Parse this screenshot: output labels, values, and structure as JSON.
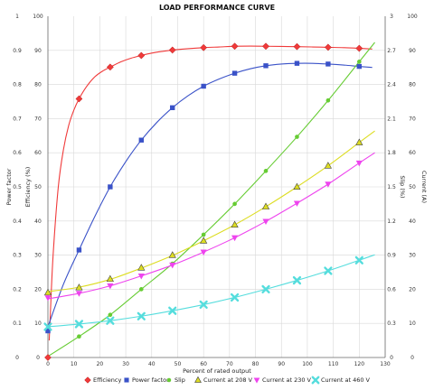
{
  "chart_data": {
    "type": "line",
    "title": "LOAD PERFORMANCE CURVE",
    "xlabel": "Percent of rated output",
    "ylabel_left_outer": "Power factor",
    "ylabel_left_inner": "Efficiency (%)",
    "ylabel_right_inner": "Slip (%)",
    "ylabel_right_outer": "Current (A)",
    "xlim": [
      0,
      130
    ],
    "x_ticks": [
      "0",
      "10",
      "20",
      "30",
      "40",
      "50",
      "60",
      "70",
      "80",
      "90",
      "100",
      "110",
      "120",
      "130"
    ],
    "pf_ticks": [
      "0",
      "0.1",
      "0.2",
      "0.3",
      "0.4",
      "0.5",
      "0.6",
      "0.7",
      "0.8",
      "0.9",
      "1"
    ],
    "eff_ticks": [
      "0",
      "10",
      "20",
      "30",
      "40",
      "50",
      "60",
      "70",
      "80",
      "90",
      "100"
    ],
    "slip_ticks": [
      "0",
      "0.3",
      "0.6",
      "0.9",
      "1.2",
      "1.5",
      "1.8",
      "2.1",
      "2.4",
      "2.7",
      "3"
    ],
    "current_ticks": [
      "0",
      "10",
      "20",
      "30",
      "40",
      "50",
      "60",
      "70",
      "80",
      "90",
      "100"
    ],
    "grid": true,
    "legend_position": "bottom",
    "series": [
      {
        "name": "Efficiency",
        "axis": "efficiency",
        "color": "#f03a3a",
        "marker": "diamond",
        "x": [
          0,
          12,
          24,
          36,
          48,
          60,
          72,
          84,
          96,
          108,
          120
        ],
        "y": [
          0,
          75.8,
          85.1,
          88.5,
          90.1,
          90.8,
          91.2,
          91.2,
          91.1,
          90.9,
          90.6
        ],
        "curve_x": [
          0.5,
          1,
          2,
          4,
          6,
          8,
          10,
          12,
          15,
          18,
          21,
          24,
          28,
          32,
          36,
          40,
          44,
          48,
          54,
          60,
          66,
          72,
          78,
          84,
          90,
          96,
          102,
          108,
          114,
          120,
          125
        ],
        "curve_y": [
          5,
          14,
          30,
          50,
          61,
          68,
          72.5,
          75.8,
          79.5,
          82.2,
          83.9,
          85.1,
          86.6,
          87.7,
          88.5,
          89.2,
          89.7,
          90.1,
          90.5,
          90.8,
          91.0,
          91.2,
          91.25,
          91.2,
          91.15,
          91.1,
          91.0,
          90.9,
          90.8,
          90.6,
          90.4
        ]
      },
      {
        "name": "Power factor",
        "axis": "power_factor",
        "color": "#3a52c8",
        "marker": "square",
        "x": [
          0,
          12,
          24,
          36,
          48,
          60,
          72,
          84,
          96,
          108,
          120
        ],
        "y": [
          0.078,
          0.315,
          0.5,
          0.637,
          0.732,
          0.795,
          0.833,
          0.855,
          0.862,
          0.86,
          0.853
        ],
        "curve_x": [
          0,
          6,
          12,
          18,
          24,
          30,
          36,
          42,
          48,
          54,
          60,
          66,
          72,
          78,
          84,
          90,
          96,
          102,
          108,
          114,
          120,
          125
        ],
        "curve_y": [
          0.09,
          0.215,
          0.315,
          0.412,
          0.5,
          0.574,
          0.637,
          0.689,
          0.732,
          0.767,
          0.795,
          0.816,
          0.833,
          0.846,
          0.855,
          0.86,
          0.862,
          0.862,
          0.86,
          0.857,
          0.853,
          0.85
        ]
      },
      {
        "name": "Slip",
        "axis": "slip",
        "color": "#66cc33",
        "marker": "circle",
        "x": [
          12,
          24,
          36,
          48,
          60,
          72,
          84,
          96,
          108,
          120
        ],
        "y": [
          0.185,
          0.375,
          0.6,
          0.825,
          1.08,
          1.35,
          1.64,
          1.94,
          2.26,
          2.6
        ],
        "curve_x": [
          0,
          12,
          24,
          36,
          48,
          60,
          72,
          84,
          96,
          108,
          120,
          126
        ],
        "curve_y": [
          0.01,
          0.185,
          0.375,
          0.6,
          0.825,
          1.08,
          1.35,
          1.64,
          1.94,
          2.26,
          2.6,
          2.77
        ]
      },
      {
        "name": "Current at 208 V",
        "axis": "current",
        "color": "#dddd22",
        "marker": "triangle",
        "x": [
          0,
          12,
          24,
          36,
          48,
          60,
          72,
          84,
          96,
          108,
          120
        ],
        "y": [
          19,
          20.5,
          23,
          26.3,
          30,
          34.2,
          38.9,
          44.2,
          50,
          56.2,
          63
        ],
        "curve_x": [
          0,
          12,
          24,
          36,
          48,
          60,
          72,
          84,
          96,
          108,
          120,
          126
        ],
        "curve_y": [
          19.3,
          20.6,
          22.9,
          26.2,
          29.9,
          34.2,
          38.9,
          44.2,
          50.0,
          56.2,
          63.0,
          66.4
        ]
      },
      {
        "name": "Current at 230 V",
        "axis": "current",
        "color": "#ee44ee",
        "marker": "inv-triangle",
        "x": [
          0,
          12,
          24,
          36,
          48,
          60,
          72,
          84,
          96,
          108,
          120
        ],
        "y": [
          17.5,
          18.8,
          21,
          23.9,
          27.1,
          30.9,
          35.1,
          39.9,
          45.2,
          50.8,
          57
        ],
        "curve_x": [
          0,
          12,
          24,
          36,
          48,
          60,
          72,
          84,
          96,
          108,
          120,
          126
        ],
        "curve_y": [
          17.2,
          18.8,
          21.0,
          23.9,
          27.1,
          30.9,
          35.1,
          39.9,
          45.2,
          50.8,
          57.0,
          60.0
        ]
      },
      {
        "name": "Current at 460 V",
        "axis": "current",
        "color": "#55dddd",
        "marker": "x",
        "x": [
          0,
          12,
          24,
          36,
          48,
          60,
          72,
          84,
          96,
          108,
          120
        ],
        "y": [
          9,
          9.8,
          10.8,
          12.1,
          13.7,
          15.5,
          17.6,
          20,
          22.6,
          25.4,
          28.5
        ],
        "curve_x": [
          0,
          12,
          24,
          36,
          48,
          60,
          72,
          84,
          96,
          108,
          120,
          126
        ],
        "curve_y": [
          9.0,
          9.8,
          10.8,
          12.1,
          13.7,
          15.5,
          17.6,
          20.0,
          22.6,
          25.4,
          28.5,
          30.1
        ]
      }
    ]
  }
}
